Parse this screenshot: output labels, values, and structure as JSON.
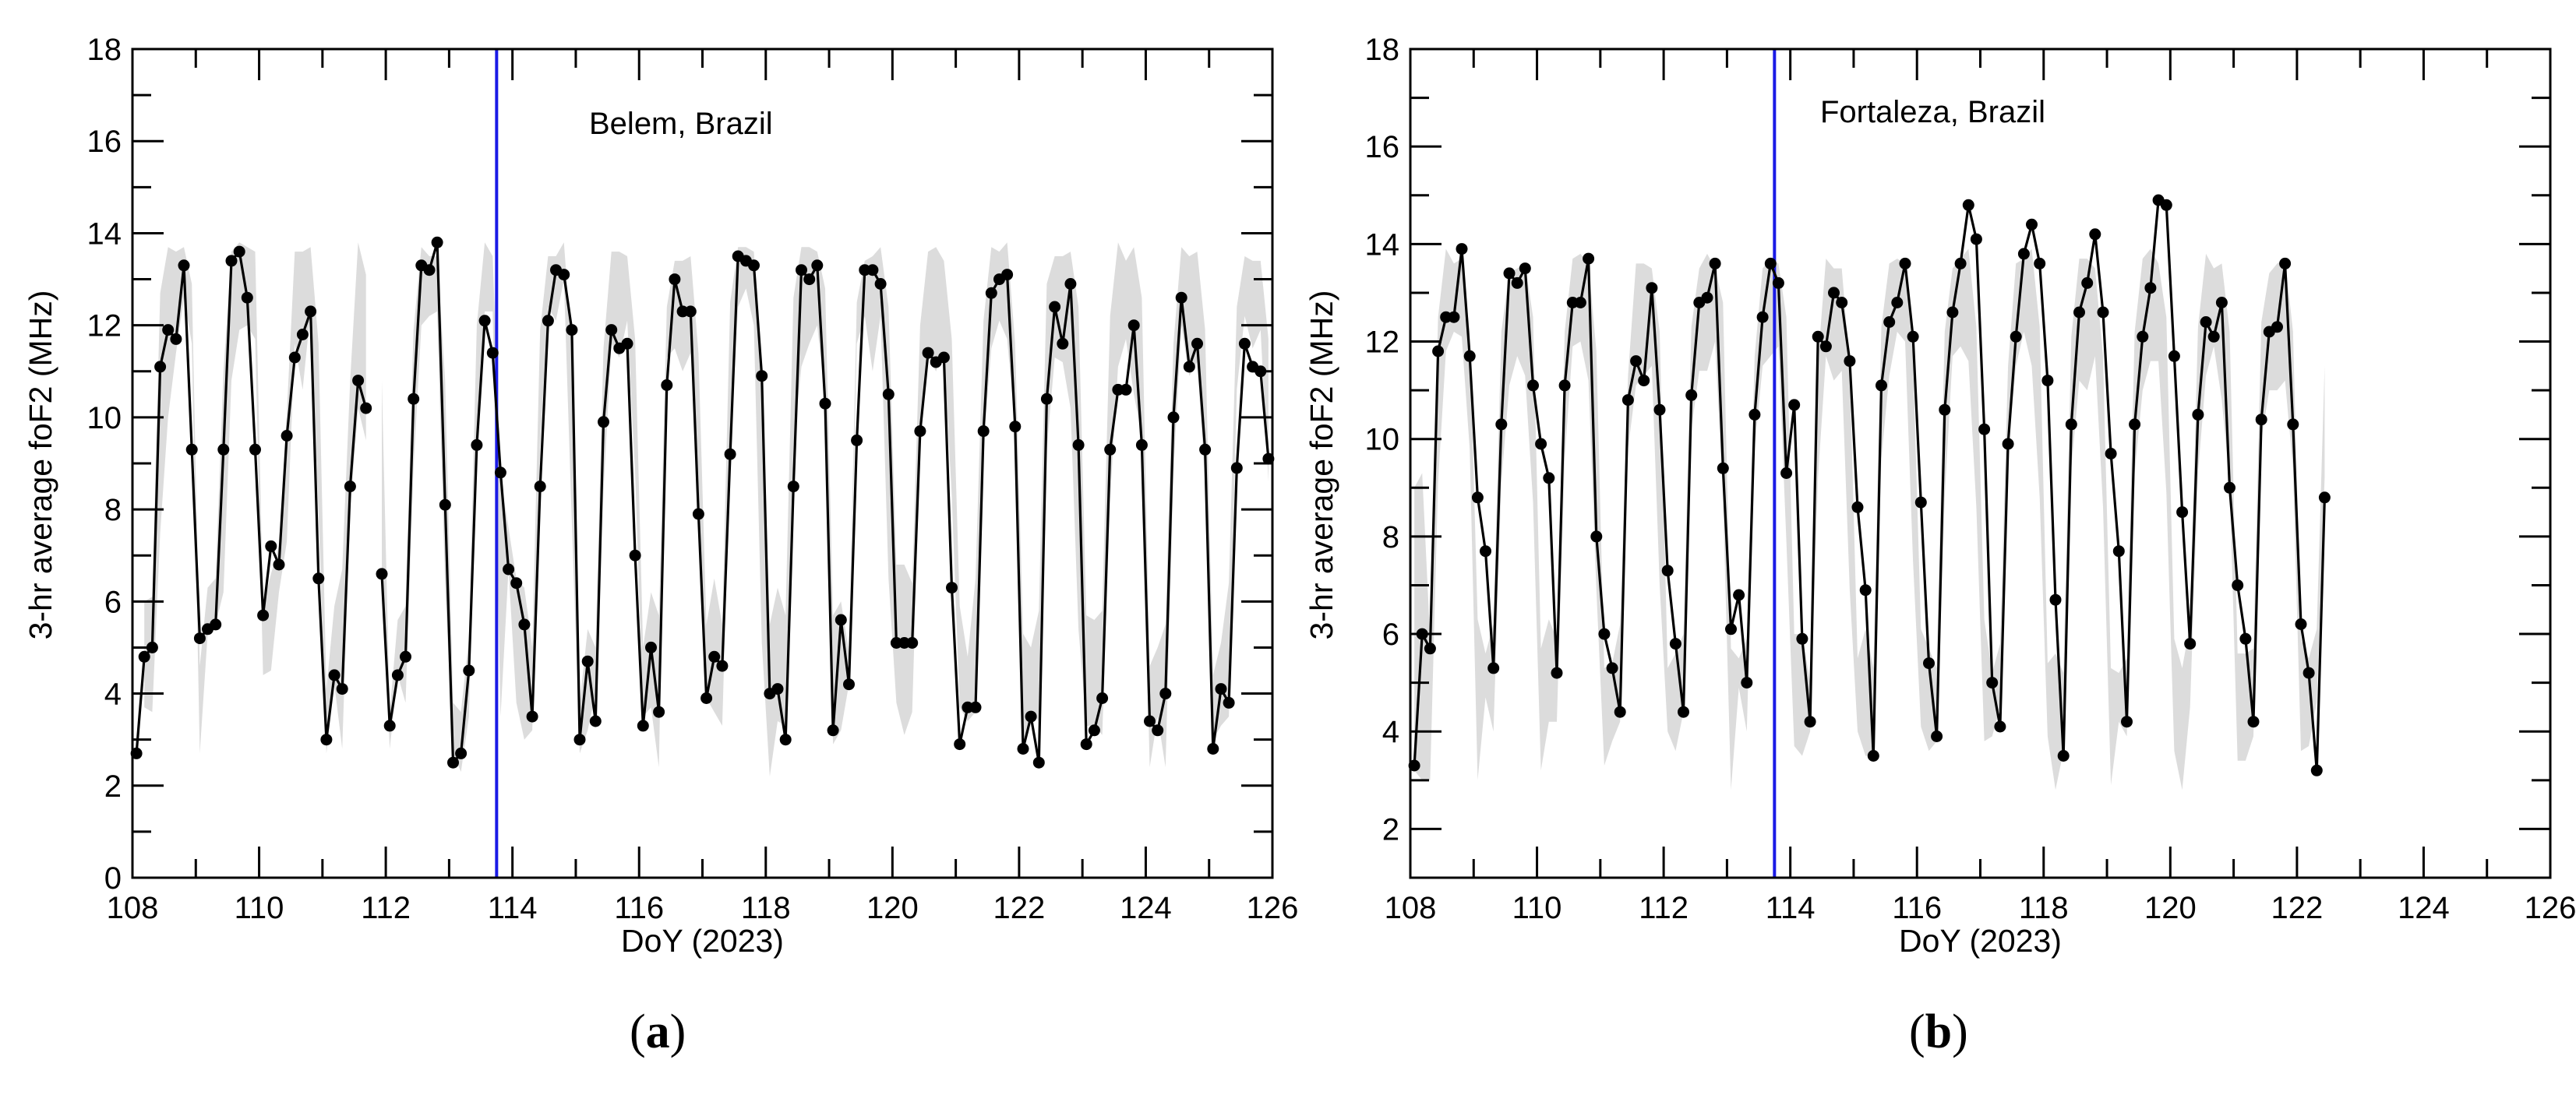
{
  "figure": {
    "panels": [
      {
        "label_open": "(",
        "label_letter": "a",
        "label_close": ")"
      },
      {
        "label_open": "(",
        "label_letter": "b",
        "label_close": ")"
      }
    ]
  },
  "chart_data": [
    {
      "type": "line",
      "annotation": "Belem, Brazil",
      "xlabel": "DoY (2023)",
      "ylabel": "3-hr average foF2 (MHz)",
      "xlim": [
        108,
        126
      ],
      "ylim": [
        0,
        18
      ],
      "xticks": [
        108,
        110,
        112,
        114,
        116,
        118,
        120,
        122,
        124,
        126
      ],
      "yticks": [
        0,
        2,
        4,
        6,
        8,
        10,
        12,
        14,
        16,
        18
      ],
      "grid": false,
      "vertical_line": {
        "x": 113.75,
        "color": "#1a1ae6"
      },
      "band_color": "#dcdcdc",
      "line_color": "#000000",
      "x": [
        108.0625,
        108.1875,
        108.3125,
        108.4375,
        108.5625,
        108.6875,
        108.8125,
        108.9375,
        109.0625,
        109.1875,
        109.3125,
        109.4375,
        109.5625,
        109.6875,
        109.8125,
        109.9375,
        110.0625,
        110.1875,
        110.3125,
        110.4375,
        110.5625,
        110.6875,
        110.8125,
        110.9375,
        111.0625,
        111.1875,
        111.3125,
        111.4375,
        111.5625,
        111.6875,
        111.8125,
        111.9375,
        112.0625,
        112.1875,
        112.3125,
        112.4375,
        112.5625,
        112.6875,
        112.8125,
        112.9375,
        113.0625,
        113.1875,
        113.3125,
        113.4375,
        113.5625,
        113.6875,
        113.8125,
        113.9375,
        114.0625,
        114.1875,
        114.3125,
        114.4375,
        114.5625,
        114.6875,
        114.8125,
        114.9375,
        115.0625,
        115.1875,
        115.3125,
        115.4375,
        115.5625,
        115.6875,
        115.8125,
        115.9375,
        116.0625,
        116.1875,
        116.3125,
        116.4375,
        116.5625,
        116.6875,
        116.8125,
        116.9375,
        117.0625,
        117.1875,
        117.3125,
        117.4375,
        117.5625,
        117.6875,
        117.8125,
        117.9375,
        118.0625,
        118.1875,
        118.3125,
        118.4375,
        118.5625,
        118.6875,
        118.8125,
        118.9375,
        119.0625,
        119.1875,
        119.3125,
        119.4375,
        119.5625,
        119.6875,
        119.8125,
        119.9375,
        120.0625,
        120.1875,
        120.3125,
        120.4375,
        120.5625,
        120.6875,
        120.8125,
        120.9375,
        121.0625,
        121.1875,
        121.3125,
        121.4375,
        121.5625,
        121.6875,
        121.8125,
        121.9375,
        122.0625,
        122.1875,
        122.3125,
        122.4375,
        122.5625,
        122.6875,
        122.8125,
        122.9375,
        123.0625,
        123.1875,
        123.3125,
        123.4375,
        123.5625,
        123.6875,
        123.8125,
        123.9375,
        124.0625,
        124.1875,
        124.3125,
        124.4375,
        124.5625,
        124.6875,
        124.8125,
        124.9375,
        125.0625,
        125.1875,
        125.3125,
        125.4375,
        125.5625,
        125.6875,
        125.8125,
        125.9375
      ],
      "y": [
        2.7,
        4.8,
        5.0,
        11.1,
        11.9,
        11.7,
        13.3,
        9.3,
        5.2,
        5.4,
        5.5,
        9.3,
        13.4,
        13.6,
        12.6,
        9.3,
        5.7,
        7.2,
        6.8,
        9.6,
        11.3,
        11.8,
        12.3,
        6.5,
        3.0,
        4.4,
        4.1,
        8.5,
        10.8,
        10.2,
        null,
        6.6,
        3.3,
        4.4,
        4.8,
        10.4,
        13.3,
        13.2,
        13.8,
        8.1,
        2.5,
        2.7,
        4.5,
        9.4,
        12.1,
        11.4,
        8.8,
        6.7,
        6.4,
        5.5,
        3.5,
        8.5,
        12.1,
        13.2,
        13.1,
        11.9,
        3.0,
        4.7,
        3.4,
        9.9,
        11.9,
        11.5,
        11.6,
        7.0,
        3.3,
        5.0,
        3.6,
        10.7,
        13.0,
        12.3,
        12.3,
        7.9,
        3.9,
        4.8,
        4.6,
        9.2,
        13.5,
        13.4,
        13.3,
        10.9,
        4.0,
        4.1,
        3.0,
        8.5,
        13.2,
        13.0,
        13.3,
        10.3,
        3.2,
        5.6,
        4.2,
        9.5,
        13.2,
        13.2,
        12.9,
        10.5,
        5.1,
        5.1,
        5.1,
        9.7,
        11.4,
        11.2,
        11.3,
        6.3,
        2.9,
        3.7,
        3.7,
        9.7,
        12.7,
        13.0,
        13.1,
        9.8,
        2.8,
        3.5,
        2.5,
        10.4,
        12.4,
        11.6,
        12.9,
        9.4,
        2.9,
        3.2,
        3.9,
        9.3,
        10.6,
        10.6,
        12.0,
        9.4,
        3.4,
        3.2,
        4.0,
        10.0,
        12.6,
        11.1,
        11.6,
        9.3,
        2.8,
        4.1,
        3.8,
        8.9,
        11.6,
        11.1,
        11.0,
        9.1
      ],
      "band_low": [
        null,
        3.7,
        3.6,
        7.5,
        10.0,
        11.4,
        12.6,
        11.6,
        2.7,
        5.3,
        5.5,
        6.2,
        10.8,
        11.9,
        12.0,
        11.7,
        4.4,
        4.5,
        6.2,
        7.3,
        11.6,
        10.6,
        12.3,
        7.9,
        2.7,
        4.2,
        2.8,
        8.0,
        10.2,
        9.5,
        null,
        6.4,
        2.8,
        4.4,
        3.8,
        8.9,
        12.0,
        12.2,
        12.3,
        6.3,
        2.7,
        2.3,
        3.5,
        9.5,
        12.3,
        12.3,
        3.5,
        6.7,
        3.8,
        3.0,
        3.2,
        9.4,
        12.4,
        12.1,
        13.0,
        7.7,
        2.7,
        3.2,
        4.0,
        8.4,
        11.6,
        11.3,
        12.1,
        8.8,
        3.5,
        3.7,
        2.4,
        11.3,
        11.5,
        11.0,
        11.4,
        8.6,
        3.9,
        3.6,
        3.3,
        9.2,
        12.4,
        12.8,
        12.0,
        5.1,
        2.2,
        3.4,
        3.3,
        9.4,
        11.1,
        11.6,
        12.0,
        10.4,
        2.9,
        3.2,
        4.2,
        11.6,
        12.2,
        11.0,
        12.2,
        6.5,
        3.8,
        3.1,
        3.6,
        9.4,
        11.3,
        11.0,
        11.4,
        8.3,
        3.7,
        3.4,
        3.6,
        9.4,
        11.5,
        12.1,
        11.7,
        9.7,
        2.8,
        3.6,
        3.4,
        9.3,
        11.3,
        11.2,
        10.2,
        5.4,
        3.3,
        3.3,
        3.1,
        8.2,
        11.1,
        11.7,
        10.5,
        9.6,
        2.4,
        3.5,
        2.4,
        8.8,
        12.0,
        10.9,
        11.2,
        8.6,
        3.0,
        3.3,
        3.5,
        10.6,
        12.2,
        11.5,
        11.9,
        8.6
      ],
      "band_high": [
        null,
        6.0,
        6.1,
        12.7,
        13.7,
        13.6,
        13.7,
        12.9,
        4.6,
        6.3,
        6.5,
        11.0,
        13.6,
        13.8,
        13.7,
        13.6,
        5.9,
        6.6,
        7.2,
        10.1,
        13.6,
        13.6,
        13.7,
        11.6,
        4.1,
        5.9,
        6.7,
        10.8,
        13.8,
        13.1,
        null,
        10.8,
        3.6,
        5.6,
        5.9,
        11.9,
        13.7,
        13.5,
        13.5,
        10.8,
        3.8,
        3.6,
        5.2,
        12.0,
        13.8,
        13.5,
        8.7,
        7.6,
        6.5,
        6.3,
        5.0,
        11.9,
        13.5,
        13.5,
        13.8,
        11.5,
        3.8,
        5.4,
        5.0,
        11.5,
        13.6,
        13.6,
        13.5,
        11.7,
        5.0,
        6.2,
        5.7,
        12.4,
        13.4,
        13.4,
        13.5,
        11.4,
        5.5,
        6.5,
        5.5,
        12.5,
        13.7,
        13.7,
        13.6,
        11.2,
        5.5,
        6.3,
        5.7,
        12.6,
        13.7,
        13.7,
        13.6,
        12.8,
        5.7,
        6.0,
        4.9,
        12.5,
        13.4,
        13.5,
        13.7,
        12.4,
        6.8,
        6.8,
        6.4,
        12.0,
        13.6,
        13.7,
        13.4,
        11.7,
        5.9,
        4.8,
        6.5,
        12.1,
        13.7,
        13.6,
        13.8,
        11.6,
        5.3,
        5.0,
        5.8,
        12.9,
        13.5,
        13.5,
        13.6,
        12.4,
        5.7,
        5.6,
        5.8,
        12.2,
        13.8,
        13.4,
        13.7,
        12.6,
        4.6,
        5.0,
        5.5,
        11.6,
        13.7,
        13.5,
        13.6,
        11.9,
        4.4,
        5.1,
        6.4,
        12.4,
        13.5,
        13.4,
        13.4,
        11.7
      ]
    },
    {
      "type": "line",
      "annotation": "Fortaleza, Brazil",
      "xlabel": "DoY (2023)",
      "ylabel": "3-hr average foF2 (MHz)",
      "xlim": [
        108,
        126
      ],
      "ylim": [
        1,
        18
      ],
      "xticks": [
        108,
        110,
        112,
        114,
        116,
        118,
        120,
        122,
        124,
        126
      ],
      "yticks": [
        2,
        4,
        6,
        8,
        10,
        12,
        14,
        16,
        18
      ],
      "grid": false,
      "vertical_line": {
        "x": 113.75,
        "color": "#1a1ae6"
      },
      "band_color": "#dcdcdc",
      "line_color": "#000000",
      "x": [
        108.0625,
        108.1875,
        108.3125,
        108.4375,
        108.5625,
        108.6875,
        108.8125,
        108.9375,
        109.0625,
        109.1875,
        109.3125,
        109.4375,
        109.5625,
        109.6875,
        109.8125,
        109.9375,
        110.0625,
        110.1875,
        110.3125,
        110.4375,
        110.5625,
        110.6875,
        110.8125,
        110.9375,
        111.0625,
        111.1875,
        111.3125,
        111.4375,
        111.5625,
        111.6875,
        111.8125,
        111.9375,
        112.0625,
        112.1875,
        112.3125,
        112.4375,
        112.5625,
        112.6875,
        112.8125,
        112.9375,
        113.0625,
        113.1875,
        113.3125,
        113.4375,
        113.5625,
        113.6875,
        113.8125,
        113.9375,
        114.0625,
        114.1875,
        114.3125,
        114.4375,
        114.5625,
        114.6875,
        114.8125,
        114.9375,
        115.0625,
        115.1875,
        115.3125,
        115.4375,
        115.5625,
        115.6875,
        115.8125,
        115.9375,
        116.0625,
        116.1875,
        116.3125,
        116.4375,
        116.5625,
        116.6875,
        116.8125,
        116.9375,
        117.0625,
        117.1875,
        117.3125,
        117.4375,
        117.5625,
        117.6875,
        117.8125,
        117.9375,
        118.0625,
        118.1875,
        118.3125,
        118.4375,
        118.5625,
        118.6875,
        118.8125,
        118.9375,
        119.0625,
        119.1875,
        119.3125,
        119.4375,
        119.5625,
        119.6875,
        119.8125,
        119.9375,
        120.0625,
        120.1875,
        120.3125,
        120.4375,
        120.5625,
        120.6875,
        120.8125,
        120.9375,
        121.0625,
        121.1875,
        121.3125,
        121.4375,
        121.5625,
        121.6875,
        121.8125,
        121.9375,
        122.0625,
        122.1875,
        122.3125,
        122.4375
      ],
      "y": [
        3.3,
        6.0,
        5.7,
        11.8,
        12.5,
        12.5,
        13.9,
        11.7,
        8.8,
        7.7,
        5.3,
        10.3,
        13.4,
        13.2,
        13.5,
        11.1,
        9.9,
        9.2,
        5.2,
        11.1,
        12.8,
        12.8,
        13.7,
        8.0,
        6.0,
        5.3,
        4.4,
        10.8,
        11.6,
        11.2,
        13.1,
        10.6,
        7.3,
        5.8,
        4.4,
        10.9,
        12.8,
        12.9,
        13.6,
        9.4,
        6.1,
        6.8,
        5.0,
        10.5,
        12.5,
        13.6,
        13.2,
        9.3,
        10.7,
        5.9,
        4.2,
        12.1,
        11.9,
        13.0,
        12.8,
        11.6,
        8.6,
        6.9,
        3.5,
        11.1,
        12.4,
        12.8,
        13.6,
        12.1,
        8.7,
        5.4,
        3.9,
        10.6,
        12.6,
        13.6,
        14.8,
        14.1,
        10.2,
        5.0,
        4.1,
        9.9,
        12.1,
        13.8,
        14.4,
        13.6,
        11.2,
        6.7,
        3.5,
        10.3,
        12.6,
        13.2,
        14.2,
        12.6,
        9.7,
        7.7,
        4.2,
        10.3,
        12.1,
        13.1,
        14.9,
        14.8,
        11.7,
        8.5,
        5.8,
        10.5,
        12.4,
        12.1,
        12.8,
        9.0,
        7.0,
        5.9,
        4.2,
        10.4,
        12.2,
        12.3,
        13.6,
        10.3,
        6.2,
        5.2,
        3.2,
        8.8
      ],
      "band_low": [
        3.2,
        3.0,
        3.0,
        9.1,
        11.8,
        12.2,
        12.1,
        9.8,
        3.0,
        4.7,
        4.0,
        9.1,
        11.1,
        11.7,
        11.3,
        8.7,
        3.2,
        4.2,
        4.2,
        9.6,
        11.9,
        12.0,
        11.2,
        6.9,
        3.3,
        3.8,
        4.2,
        9.8,
        11.1,
        11.3,
        11.5,
        7.0,
        4.0,
        3.6,
        4.4,
        10.2,
        11.4,
        11.4,
        12.0,
        8.8,
        2.8,
        4.9,
        4.0,
        9.8,
        11.5,
        11.7,
        11.9,
        7.9,
        3.7,
        3.5,
        4.0,
        9.2,
        11.7,
        11.2,
        11.4,
        6.9,
        4.0,
        3.5,
        3.5,
        9.6,
        11.3,
        12.2,
        12.0,
        7.5,
        4.1,
        3.6,
        3.8,
        8.8,
        11.7,
        11.9,
        11.6,
        8.6,
        3.8,
        3.9,
        4.5,
        9.7,
        11.5,
        12.2,
        11.5,
        8.8,
        3.9,
        2.8,
        3.6,
        9.4,
        11.2,
        11.0,
        11.7,
        8.6,
        2.9,
        4.2,
        3.9,
        9.3,
        11.0,
        11.6,
        11.6,
        8.9,
        3.6,
        2.8,
        4.5,
        9.3,
        11.3,
        11.9,
        10.8,
        9.1,
        3.4,
        3.4,
        3.9,
        10.0,
        11.0,
        11.0,
        11.2,
        9.4,
        3.6,
        3.7,
        4.6,
        9.2
      ],
      "band_high": [
        9.0,
        9.3,
        5.9,
        12.5,
        13.9,
        13.6,
        13.7,
        12.2,
        6.3,
        5.6,
        6.2,
        12.2,
        13.4,
        13.5,
        13.6,
        12.5,
        5.7,
        6.3,
        5.9,
        12.2,
        13.7,
        13.8,
        13.6,
        11.8,
        5.3,
        5.4,
        6.2,
        11.3,
        13.6,
        13.6,
        13.5,
        12.2,
        5.3,
        5.6,
        6.0,
        12.3,
        13.5,
        13.8,
        13.5,
        12.8,
        5.7,
        5.5,
        5.9,
        11.7,
        13.5,
        13.7,
        13.6,
        12.5,
        6.0,
        6.0,
        5.0,
        11.6,
        13.7,
        13.5,
        13.5,
        11.5,
        5.5,
        6.1,
        5.3,
        12.3,
        13.6,
        13.7,
        13.6,
        11.7,
        6.1,
        5.7,
        5.3,
        12.2,
        13.5,
        13.7,
        13.9,
        12.3,
        6.3,
        5.2,
        5.8,
        11.5,
        13.6,
        13.7,
        13.9,
        12.3,
        5.4,
        5.6,
        5.2,
        12.1,
        13.7,
        13.7,
        13.5,
        11.7,
        5.3,
        5.2,
        5.5,
        12.2,
        13.7,
        13.9,
        13.6,
        12.5,
        5.9,
        5.3,
        6.2,
        12.3,
        13.8,
        13.5,
        13.6,
        12.2,
        5.6,
        5.6,
        5.7,
        12.4,
        13.4,
        13.6,
        13.7,
        12.2,
        5.9,
        5.5,
        6.1,
        11.5
      ]
    }
  ]
}
